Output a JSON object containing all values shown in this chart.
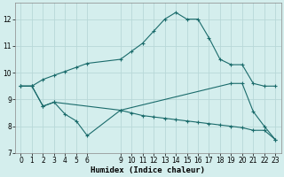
{
  "background_color": "#d4eeed",
  "grid_color": "#b8d8d8",
  "line_color": "#1a6b6b",
  "line1_x": [
    0,
    1,
    2,
    3,
    4,
    5,
    6,
    9,
    10,
    11,
    12,
    13,
    14,
    15,
    16,
    17,
    18,
    19,
    20,
    21,
    22,
    23
  ],
  "line1_y": [
    9.5,
    9.5,
    9.75,
    9.9,
    10.05,
    10.2,
    10.35,
    10.5,
    10.8,
    11.1,
    11.55,
    12.0,
    12.25,
    12.0,
    12.0,
    11.3,
    10.5,
    10.3,
    10.3,
    9.6,
    9.5,
    9.5
  ],
  "line2_x": [
    0,
    1,
    2,
    3,
    4,
    5,
    6,
    9,
    10,
    11,
    12,
    13,
    14,
    15,
    16,
    17,
    18,
    19,
    20,
    21,
    22,
    23
  ],
  "line2_y": [
    9.5,
    9.5,
    8.75,
    8.9,
    8.45,
    8.2,
    7.65,
    8.6,
    8.5,
    8.4,
    8.35,
    8.3,
    8.25,
    8.2,
    8.15,
    8.1,
    8.05,
    8.0,
    7.95,
    7.85,
    7.85,
    7.5
  ],
  "line3_x": [
    0,
    1,
    2,
    3,
    9,
    19,
    20,
    21,
    22,
    23
  ],
  "line3_y": [
    9.5,
    9.5,
    8.75,
    8.9,
    8.6,
    9.6,
    9.6,
    8.55,
    8.0,
    7.5
  ],
  "xlim": [
    -0.5,
    23.5
  ],
  "ylim": [
    7.0,
    12.6
  ],
  "xlabel": "Humidex (Indice chaleur)",
  "xticks": [
    0,
    1,
    2,
    3,
    4,
    5,
    6,
    9,
    10,
    11,
    12,
    13,
    14,
    15,
    16,
    17,
    18,
    19,
    20,
    21,
    22,
    23
  ],
  "yticks": [
    7,
    8,
    9,
    10,
    11,
    12
  ],
  "xlabel_fontsize": 6.5,
  "tick_fontsize": 5.5
}
